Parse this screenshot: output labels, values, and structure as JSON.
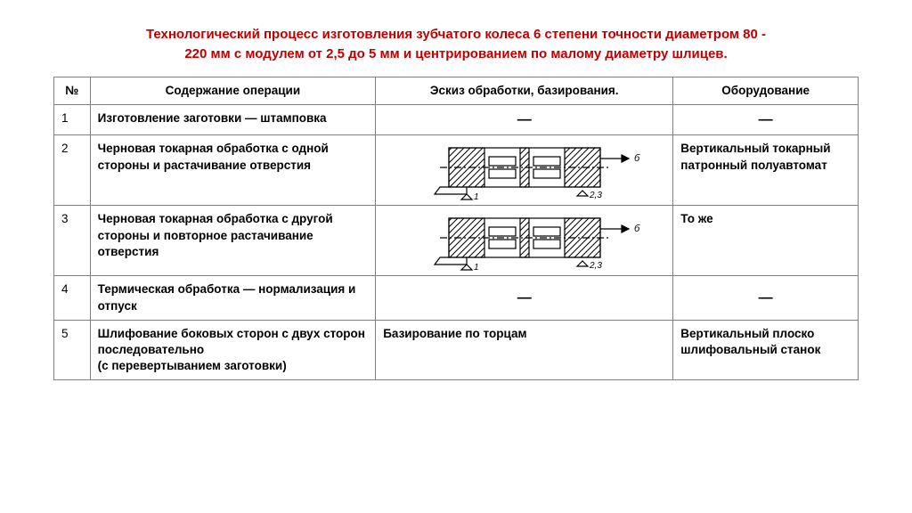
{
  "title_line1": "Технологический процесс изготовления зубчатого колеса 6 степени точности диаметром 80 -",
  "title_line2": "220 мм с модулем от 2,5 до 5 мм и центрированием по малому диаметру шлицев.",
  "columns": {
    "num": "№",
    "operation": "Содержание операции",
    "sketch": "Эскиз обработки, базирования.",
    "equipment": "Оборудование"
  },
  "rows": [
    {
      "n": "1",
      "op": "Изготовление заготовки — штамповка",
      "sketch_kind": "dash",
      "eq_kind": "dash"
    },
    {
      "n": "2",
      "op": "Черновая токарная обработка с одной стороны и растачивание отверстия",
      "sketch_kind": "drawing",
      "sketch_label_right": "б",
      "sketch_label_bl": "1",
      "sketch_label_br": "2,3",
      "eq_kind": "text",
      "eq": "Вертикальный токарный патронный полуавтомат"
    },
    {
      "n": "3",
      "op": "Черновая токарная обработка с другой стороны и повторное растачивание отверстия",
      "sketch_kind": "drawing",
      "sketch_label_right": "б",
      "sketch_label_bl": "1",
      "sketch_label_br": "2,3",
      "eq_kind": "text",
      "eq": "То же"
    },
    {
      "n": "4",
      "op": "Термическая обработка — нормализация и отпуск",
      "sketch_kind": "dash",
      "eq_kind": "dash"
    },
    {
      "n": "5",
      "op": "Шлифование боковых сторон с двух сторон последовательно\n(с перевертыванием заготовки)",
      "sketch_kind": "text",
      "sketch_text": "Базирование по торцам",
      "eq_kind": "text",
      "eq": "Вертикальный плоско шлифовальный станок"
    }
  ],
  "colors": {
    "title": "#c00000",
    "border": "#808080",
    "text": "#000000",
    "bg": "#ffffff"
  },
  "sketch_style": {
    "stroke": "#000000",
    "stroke_width": 1.2,
    "bg": "#ffffff"
  }
}
